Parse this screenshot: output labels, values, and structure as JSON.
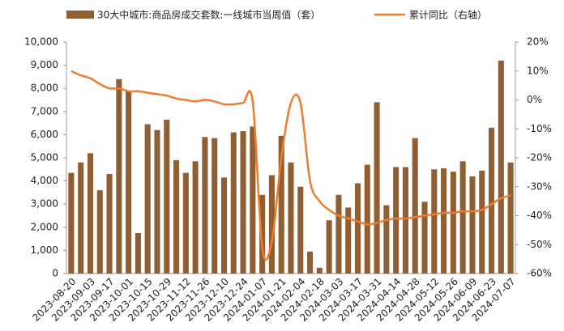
{
  "chart_data": {
    "type": "bar_line",
    "categories": [
      "2023-08-20",
      null,
      "2023-09-03",
      null,
      "2023-09-17",
      null,
      "2023-10-01",
      null,
      "2023-10-15",
      null,
      "2023-10-29",
      null,
      "2023-11-12",
      null,
      "2023-11-26",
      null,
      "2023-12-10",
      null,
      "2023-12-24",
      null,
      "2024-01-07",
      null,
      "2024-01-21",
      null,
      "2024-02-04",
      null,
      "2024-02-18",
      null,
      "2024-03-03",
      null,
      "2024-03-17",
      null,
      "2024-03-31",
      null,
      "2024-04-14",
      null,
      "2024-04-28",
      null,
      "2024-05-12",
      null,
      "2024-05-26",
      null,
      "2024-06-09",
      null,
      "2024-06-23",
      null,
      "2024-07-07"
    ],
    "series": [
      {
        "name": "30大中城市:商品房成交套数:一线城市当周值（套）",
        "color": "#8f5f33",
        "type": "bar",
        "values": [
          4350,
          4800,
          5200,
          3600,
          4300,
          8400,
          7900,
          1750,
          6450,
          6200,
          6650,
          4900,
          4350,
          4850,
          5900,
          5850,
          4150,
          6100,
          6150,
          6350,
          3400,
          4250,
          5950,
          4800,
          3750,
          950,
          250,
          2300,
          3400,
          2850,
          3900,
          4700,
          7400,
          2950,
          4600,
          4600,
          5850,
          3100,
          4500,
          4550,
          4400,
          4850,
          4200,
          4450,
          6300,
          9200,
          4800
        ]
      },
      {
        "name": "累计同比（右轴）",
        "color": "#ed7d31",
        "type": "line",
        "axis": "y2",
        "values": [
          10,
          8.5,
          7.5,
          5.5,
          4,
          4,
          3,
          3,
          2.5,
          2,
          1.5,
          0.5,
          0,
          -0.5,
          0,
          -0.5,
          -1.5,
          -1.5,
          -1,
          -0.5,
          -51,
          -49,
          -20,
          -1,
          -1,
          -28,
          -35,
          -38,
          -40,
          -41,
          -42,
          -43,
          -42.5,
          -41.5,
          -41,
          -41,
          -40.5,
          -40,
          -39.5,
          -39,
          -39,
          -38.5,
          -38.5,
          -38,
          -36,
          -34,
          -33
        ]
      }
    ],
    "ylim": [
      0,
      10000
    ],
    "yticks": [
      0,
      {
        "value": 1000,
        "label": "1,000"
      },
      {
        "value": 2000,
        "label": "2,000"
      },
      {
        "value": 3000,
        "label": "3,000"
      },
      {
        "value": 4000,
        "label": "4,000"
      },
      {
        "value": 5000,
        "label": "5,000"
      },
      {
        "value": 6000,
        "label": "6,000"
      },
      {
        "value": 7000,
        "label": "7,000"
      },
      {
        "value": 8000,
        "label": "8,000"
      },
      {
        "value": 9000,
        "label": "9,000"
      },
      {
        "value": 10000,
        "label": "10,000"
      }
    ],
    "y2lim": [
      -60,
      20
    ],
    "y2ticks": [
      {
        "value": -60,
        "label": "-60%"
      },
      {
        "value": -50,
        "label": "-50%"
      },
      {
        "value": -40,
        "label": "-40%"
      },
      {
        "value": -30,
        "label": "-30%"
      },
      {
        "value": -20,
        "label": "-20%"
      },
      {
        "value": -10,
        "label": "-10%"
      },
      {
        "value": 0,
        "label": "0%"
      },
      {
        "value": 10,
        "label": "10%"
      },
      {
        "value": 20,
        "label": "20%"
      }
    ],
    "legend": "top"
  }
}
